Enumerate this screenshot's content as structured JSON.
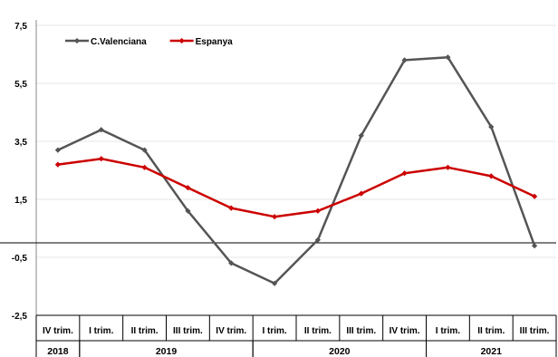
{
  "chart_data": {
    "type": "line",
    "title": "",
    "xlabel": "",
    "ylabel": "",
    "ylim": [
      -2.5,
      7.5
    ],
    "yticks": [
      "7,5",
      "5,5",
      "3,5",
      "1,5",
      "-0,5",
      "-2,5"
    ],
    "ytick_values": [
      7.5,
      5.5,
      3.5,
      1.5,
      -0.5,
      -2.5
    ],
    "categories": [
      "IV trim.",
      "I trim.",
      "II trim.",
      "III trim.",
      "IV trim.",
      "I trim.",
      "II trim.",
      "III trim.",
      "IV trim.",
      "I trim.",
      "II trim.",
      "III trim."
    ],
    "year_groups": [
      {
        "label": "2018",
        "span": 1
      },
      {
        "label": "2019",
        "span": 4
      },
      {
        "label": "2020",
        "span": 4
      },
      {
        "label": "2021",
        "span": 3
      }
    ],
    "series": [
      {
        "name": "C.Valenciana",
        "color": "#555555",
        "values": [
          3.2,
          3.9,
          3.2,
          1.1,
          -0.7,
          -1.4,
          0.1,
          3.7,
          6.3,
          6.4,
          4.0,
          -0.1
        ]
      },
      {
        "name": "Espanya",
        "color": "#cc0000",
        "values": [
          2.7,
          2.9,
          2.6,
          1.9,
          1.2,
          0.9,
          1.1,
          1.7,
          2.4,
          2.6,
          2.3,
          1.6
        ]
      }
    ],
    "zero_line": true,
    "grid": true,
    "legend_position": "top-left"
  }
}
